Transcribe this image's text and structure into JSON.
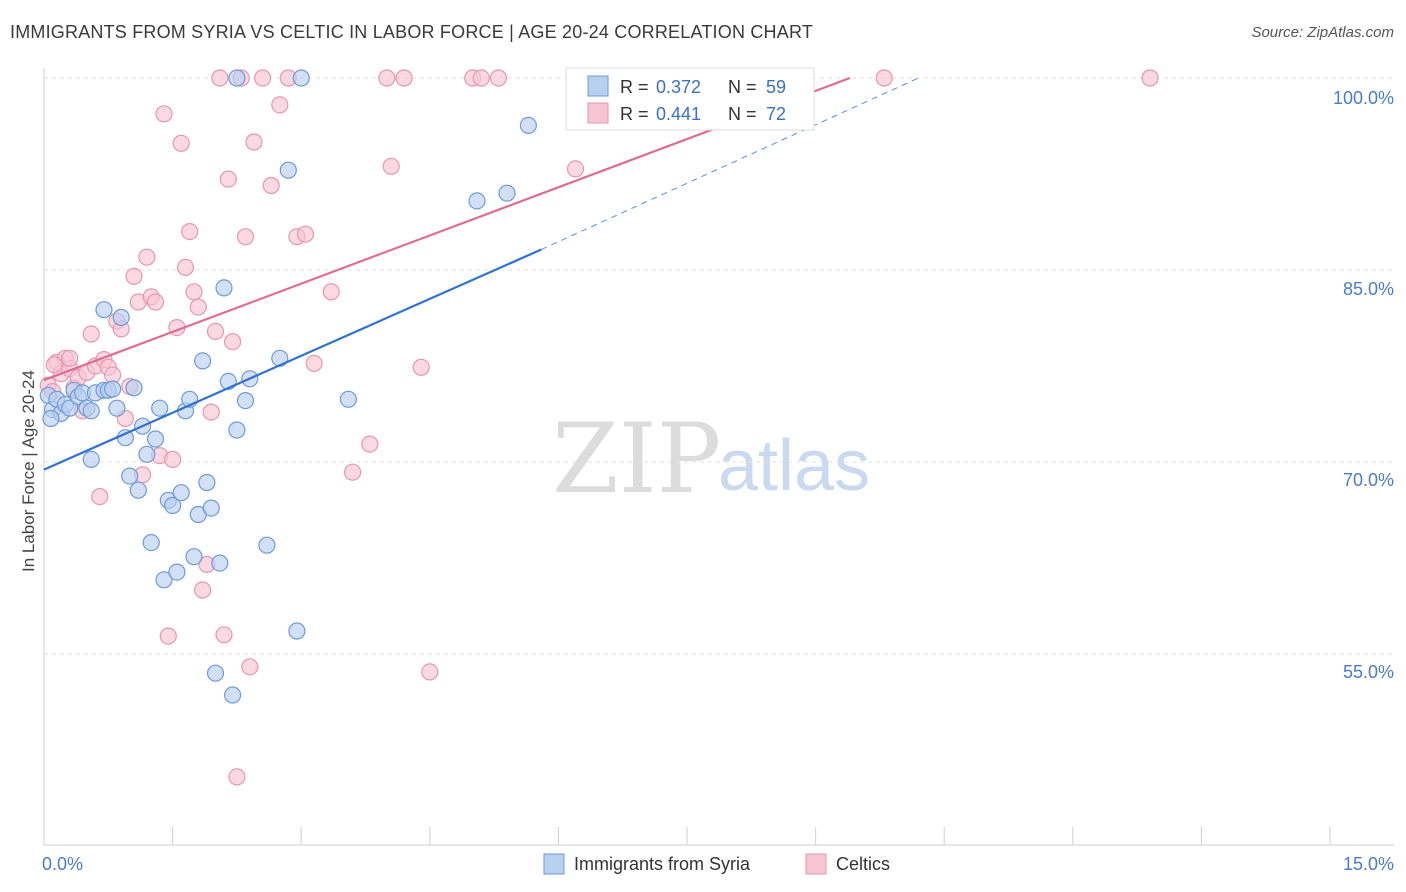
{
  "header": {
    "title": "IMMIGRANTS FROM SYRIA VS CELTIC IN LABOR FORCE | AGE 20-24 CORRELATION CHART",
    "source": "Source: ZipAtlas.com"
  },
  "watermark": {
    "zip": "ZIP",
    "atlas": "atlas"
  },
  "colors": {
    "blue_fill": "#b8cff0",
    "blue_stroke": "#6f9ad8",
    "blue_line": "#2f72d0",
    "pink_fill": "#f7c4d4",
    "pink_stroke": "#e796b1",
    "pink_line": "#e06b93",
    "grid": "#e2e2e2",
    "axis_text": "#4a7cc9"
  },
  "legend": {
    "row1": {
      "r_label": "R = ",
      "r_value": "0.372",
      "n_label": "N = ",
      "n_value": "59"
    },
    "row2": {
      "r_label": "R = ",
      "r_value": "0.441",
      "n_label": "N = ",
      "n_value": "72"
    }
  },
  "bottom_legend": {
    "series1": "Immigrants from Syria",
    "series2": "Celtics"
  },
  "chart_data": {
    "type": "scatter",
    "title": "IMMIGRANTS FROM SYRIA VS CELTIC IN LABOR FORCE | AGE 20-24 CORRELATION CHART",
    "xlabel": "",
    "ylabel": "In Labor Force | Age 20-24",
    "xlim": [
      0,
      15
    ],
    "ylim": [
      38.5,
      101
    ],
    "x_tick_labels": [
      "0.0%",
      "15.0%"
    ],
    "y_ticks": [
      55,
      70,
      85,
      100
    ],
    "y_tick_labels": [
      "55.0%",
      "70.0%",
      "85.0%",
      "100.0%"
    ],
    "grid": true,
    "legend_position": "top-center",
    "series": [
      {
        "name": "Immigrants from Syria",
        "R": 0.372,
        "N": 59,
        "trend": {
          "x0": 0,
          "y0": 69.4,
          "x1": 5.8,
          "y1": 86.6,
          "dashed_to_x": 10.2,
          "dashed_to_y": 100
        },
        "points": [
          [
            0.05,
            75.2
          ],
          [
            0.1,
            74.1
          ],
          [
            0.15,
            74.9
          ],
          [
            0.2,
            73.8
          ],
          [
            0.25,
            74.5
          ],
          [
            0.3,
            74.2
          ],
          [
            0.35,
            75.6
          ],
          [
            0.4,
            75.1
          ],
          [
            0.45,
            75.4
          ],
          [
            0.5,
            74.2
          ],
          [
            0.55,
            70.2
          ],
          [
            0.6,
            75.4
          ],
          [
            0.7,
            75.6
          ],
          [
            0.7,
            81.9
          ],
          [
            0.75,
            75.6
          ],
          [
            0.8,
            75.7
          ],
          [
            0.85,
            74.2
          ],
          [
            0.9,
            81.3
          ],
          [
            0.95,
            71.9
          ],
          [
            1.0,
            68.9
          ],
          [
            1.05,
            75.8
          ],
          [
            1.1,
            67.8
          ],
          [
            1.15,
            72.8
          ],
          [
            1.2,
            70.6
          ],
          [
            1.25,
            63.7
          ],
          [
            1.3,
            71.8
          ],
          [
            1.35,
            74.2
          ],
          [
            1.4,
            60.8
          ],
          [
            1.45,
            67.0
          ],
          [
            1.5,
            66.6
          ],
          [
            1.55,
            61.4
          ],
          [
            1.6,
            67.6
          ],
          [
            1.65,
            74.0
          ],
          [
            1.7,
            74.9
          ],
          [
            1.75,
            62.6
          ],
          [
            1.8,
            65.9
          ],
          [
            1.85,
            77.9
          ],
          [
            1.9,
            68.4
          ],
          [
            1.95,
            66.4
          ],
          [
            2.0,
            53.5
          ],
          [
            2.05,
            62.1
          ],
          [
            2.1,
            83.6
          ],
          [
            2.15,
            76.3
          ],
          [
            2.2,
            51.8
          ],
          [
            2.25,
            72.5
          ],
          [
            2.35,
            74.8
          ],
          [
            2.4,
            76.5
          ],
          [
            2.6,
            63.5
          ],
          [
            2.75,
            78.1
          ],
          [
            2.85,
            92.8
          ],
          [
            2.95,
            56.8
          ],
          [
            3.55,
            74.9
          ],
          [
            2.25,
            100
          ],
          [
            3.0,
            100
          ],
          [
            5.05,
            90.4
          ],
          [
            5.4,
            91.0
          ],
          [
            5.65,
            96.3
          ],
          [
            0.08,
            73.4
          ],
          [
            0.55,
            74.0
          ]
        ]
      },
      {
        "name": "Celtics",
        "R": 0.441,
        "N": 72,
        "trend": {
          "x0": 0,
          "y0": 76.4,
          "x1": 9.4,
          "y1": 100
        },
        "points": [
          [
            0.05,
            76.0
          ],
          [
            0.1,
            75.5
          ],
          [
            0.15,
            77.8
          ],
          [
            0.2,
            76.9
          ],
          [
            0.25,
            78.1
          ],
          [
            0.3,
            77.3
          ],
          [
            0.35,
            75.8
          ],
          [
            0.4,
            76.6
          ],
          [
            0.45,
            74.0
          ],
          [
            0.5,
            77.0
          ],
          [
            0.55,
            80.0
          ],
          [
            0.6,
            77.5
          ],
          [
            0.65,
            67.3
          ],
          [
            0.7,
            78.0
          ],
          [
            0.75,
            77.4
          ],
          [
            0.8,
            76.8
          ],
          [
            0.85,
            81.0
          ],
          [
            0.9,
            80.4
          ],
          [
            0.95,
            73.4
          ],
          [
            1.0,
            75.9
          ],
          [
            1.05,
            84.5
          ],
          [
            1.1,
            82.5
          ],
          [
            1.15,
            69.0
          ],
          [
            1.2,
            86.0
          ],
          [
            1.25,
            82.9
          ],
          [
            1.3,
            82.5
          ],
          [
            1.35,
            70.5
          ],
          [
            1.4,
            97.2
          ],
          [
            1.45,
            56.4
          ],
          [
            1.5,
            70.2
          ],
          [
            1.55,
            80.5
          ],
          [
            1.6,
            94.9
          ],
          [
            1.65,
            85.2
          ],
          [
            1.7,
            88.0
          ],
          [
            1.75,
            83.3
          ],
          [
            1.8,
            82.1
          ],
          [
            1.85,
            60.0
          ],
          [
            1.9,
            62.0
          ],
          [
            1.95,
            73.9
          ],
          [
            2.0,
            80.2
          ],
          [
            2.05,
            100
          ],
          [
            2.1,
            56.5
          ],
          [
            2.15,
            92.1
          ],
          [
            2.2,
            79.4
          ],
          [
            2.25,
            45.4
          ],
          [
            2.3,
            100
          ],
          [
            2.35,
            87.6
          ],
          [
            2.4,
            54.0
          ],
          [
            2.45,
            95.0
          ],
          [
            2.55,
            100
          ],
          [
            2.65,
            91.6
          ],
          [
            2.75,
            97.9
          ],
          [
            2.85,
            100
          ],
          [
            2.95,
            87.6
          ],
          [
            3.05,
            87.8
          ],
          [
            3.15,
            77.7
          ],
          [
            3.35,
            83.3
          ],
          [
            3.6,
            69.2
          ],
          [
            3.8,
            71.4
          ],
          [
            4.0,
            100
          ],
          [
            4.05,
            93.1
          ],
          [
            4.2,
            100
          ],
          [
            4.4,
            77.4
          ],
          [
            4.5,
            53.6
          ],
          [
            5.0,
            100
          ],
          [
            5.1,
            100
          ],
          [
            5.3,
            100
          ],
          [
            6.2,
            92.9
          ],
          [
            9.8,
            100
          ],
          [
            12.9,
            100
          ],
          [
            0.3,
            78.1
          ],
          [
            0.12,
            77.6
          ]
        ]
      }
    ]
  }
}
